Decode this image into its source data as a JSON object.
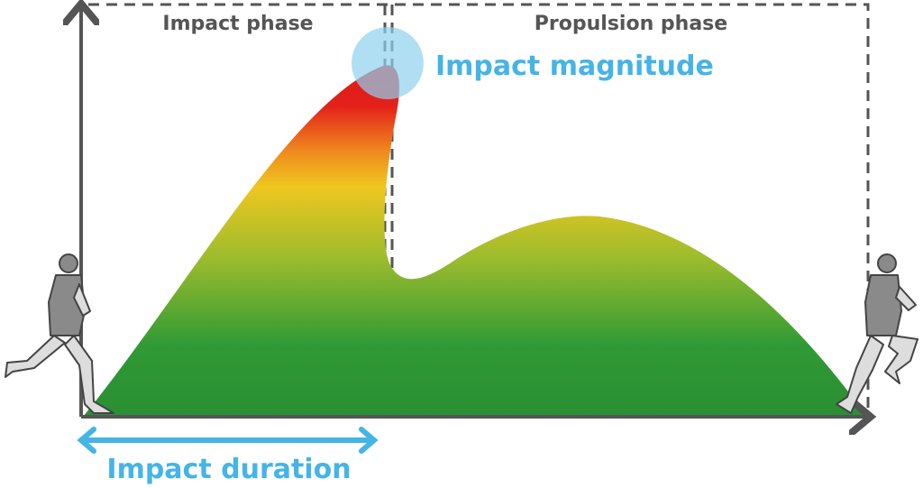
{
  "phases": {
    "impact": "Impact phase",
    "propulsion": "Propulsion phase"
  },
  "annotations": {
    "magnitude": "Impact magnitude",
    "duration": "Impact duration"
  }
}
